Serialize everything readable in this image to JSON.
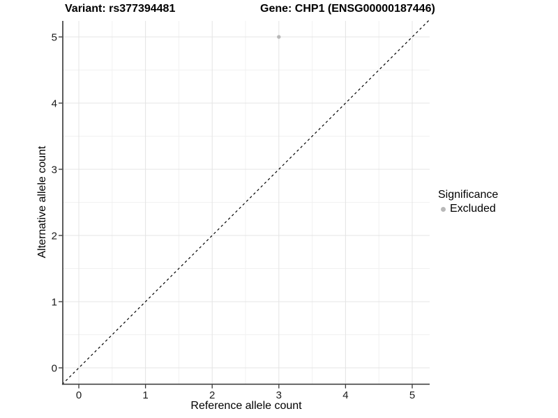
{
  "titles": {
    "variant": "Variant: rs377394481",
    "gene": "Gene: CHP1 (ENSG00000187446)"
  },
  "chart_data": {
    "type": "scatter",
    "title": "Variant: rs377394481   Gene: CHP1 (ENSG00000187446)",
    "xlabel": "Reference allele count",
    "ylabel": "Alternative allele count",
    "xlim": [
      -0.25,
      5.25
    ],
    "ylim": [
      -0.25,
      5.25
    ],
    "x_ticks": [
      0,
      1,
      2,
      3,
      4,
      5
    ],
    "y_ticks": [
      0,
      1,
      2,
      3,
      4,
      5
    ],
    "minor_ticks": [
      0.5,
      1.5,
      2.5,
      3.5,
      4.5
    ],
    "grid": "major+minor",
    "reference_line": {
      "style": "dashed",
      "equation": "y = x",
      "from": [
        -0.25,
        -0.25
      ],
      "to": [
        5.25,
        5.25
      ]
    },
    "series": [
      {
        "name": "Excluded",
        "color": "#b8b8b8",
        "points": [
          {
            "x": 3,
            "y": 5
          }
        ]
      }
    ],
    "legend": {
      "title": "Significance",
      "position": "right",
      "items": [
        {
          "label": "Excluded",
          "color": "#b8b8b8"
        }
      ]
    }
  },
  "colors": {
    "background": "#ffffff",
    "grid_major": "#e4e4e4",
    "grid_minor": "#f1f1f1",
    "axis": "#333333",
    "tick_text": "#1a1a1a",
    "reference_line": "#000000",
    "point": "#b8b8b8"
  }
}
